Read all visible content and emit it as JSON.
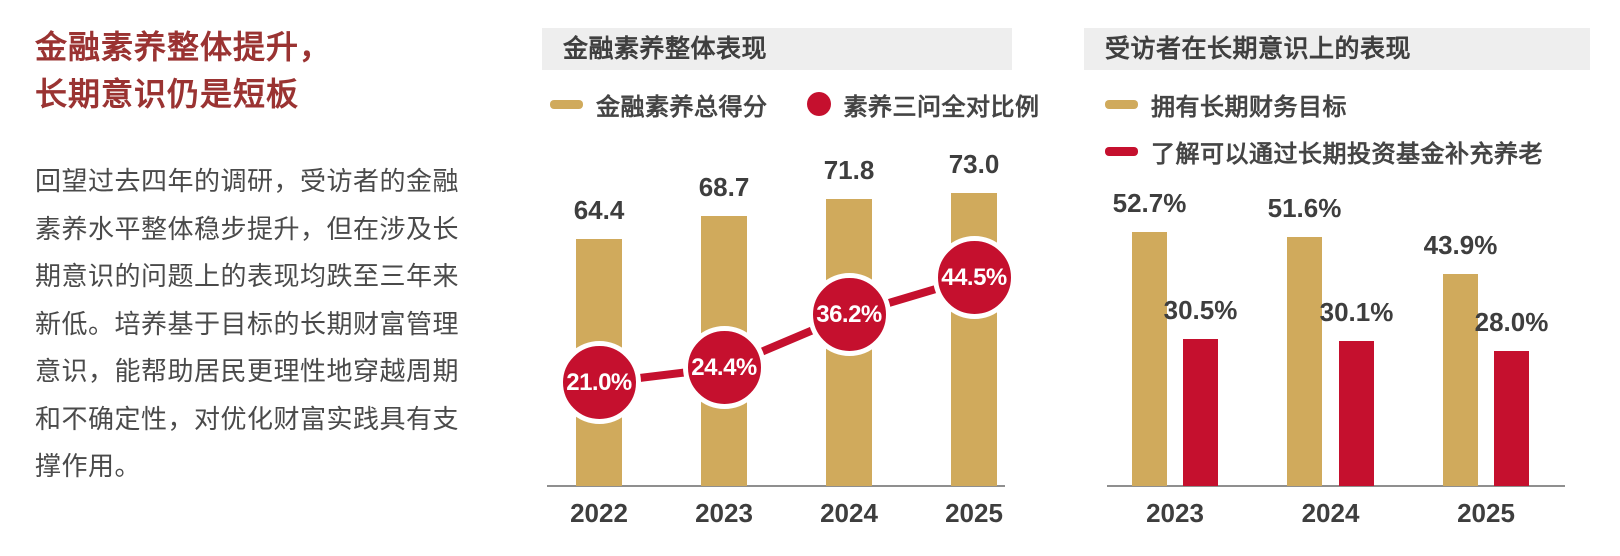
{
  "colors": {
    "gold": "#D0AA5C",
    "red": "#C5102E",
    "title_red": "#9A3332",
    "header_bg": "#EEEEEE",
    "axis_gray": "#8F8F8F",
    "text_dark": "#4A4A4A",
    "label_dark": "#3E3E3E"
  },
  "left_panel": {
    "title_line1": "金融素养整体提升，",
    "title_line2": "长期意识仍是短板",
    "body": "回望过去四年的调研，受访者的金融素养水平整体稳步提升，但在涉及长期意识的问题上的表现均跌至三年来新低。培养基于目标的长期财富管理意识，能帮助居民更理性地穿越周期和不确定性，对优化财富实践具有支撑作用。"
  },
  "chart_data": [
    {
      "type": "bar",
      "subtype": "bar-with-line-overlay",
      "title": "金融素养整体表现",
      "categories": [
        "2022",
        "2023",
        "2024",
        "2025"
      ],
      "series": [
        {
          "name": "金融素养总得分",
          "mark": "bar",
          "color_key": "gold",
          "values": [
            64.4,
            68.7,
            71.8,
            73.0
          ],
          "value_suffix": ""
        },
        {
          "name": "素养三问全对比例",
          "mark": "line",
          "color_key": "red",
          "values": [
            21.0,
            24.4,
            36.2,
            44.5
          ],
          "value_suffix": "%"
        }
      ],
      "legend_position": "top",
      "grid": false,
      "axis": "x-baseline-only"
    },
    {
      "type": "bar",
      "subtype": "grouped-bars",
      "title": "受访者在长期意识上的表现",
      "categories": [
        "2023",
        "2024",
        "2025"
      ],
      "series": [
        {
          "name": "拥有长期财务目标",
          "mark": "bar",
          "color_key": "gold",
          "values": [
            52.7,
            51.6,
            43.9
          ],
          "value_suffix": "%"
        },
        {
          "name": "了解可以通过长期投资基金补充养老",
          "mark": "bar",
          "color_key": "red",
          "values": [
            30.5,
            30.1,
            28.0
          ],
          "value_suffix": "%"
        }
      ],
      "legend_position": "top",
      "grid": false,
      "axis": "x-baseline-only"
    }
  ]
}
